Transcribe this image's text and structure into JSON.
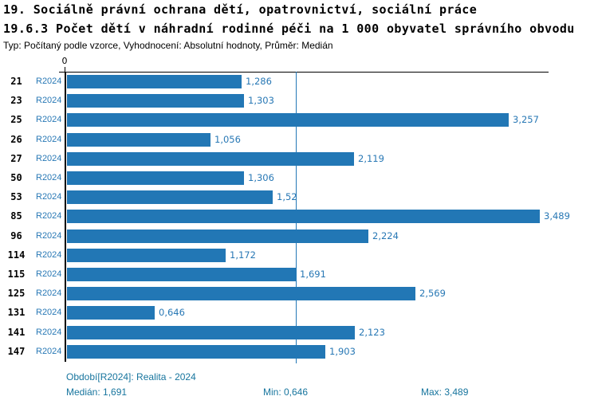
{
  "header": {
    "title_line1": "19. Sociálně právní ochrana dětí, opatrovnictví, sociální práce",
    "title_line2": "19.6.3 Počet dětí v náhradní rodinné péči na 1 000 obyvatel správního obvodu",
    "subtitle": "Typ: Počítaný podle vzorce, Vyhodnocení: Absolutní hodnoty, Průměr: Medián"
  },
  "chart": {
    "axis_zero_label": "0",
    "rows": [
      {
        "district": "21",
        "period": "R2024",
        "value": "1,286"
      },
      {
        "district": "23",
        "period": "R2024",
        "value": "1,303"
      },
      {
        "district": "25",
        "period": "R2024",
        "value": "3,257"
      },
      {
        "district": "26",
        "period": "R2024",
        "value": "1,056"
      },
      {
        "district": "27",
        "period": "R2024",
        "value": "2,119"
      },
      {
        "district": "50",
        "period": "R2024",
        "value": "1,306"
      },
      {
        "district": "53",
        "period": "R2024",
        "value": "1,52"
      },
      {
        "district": "85",
        "period": "R2024",
        "value": "3,489"
      },
      {
        "district": "96",
        "period": "R2024",
        "value": "2,224"
      },
      {
        "district": "114",
        "period": "R2024",
        "value": "1,172"
      },
      {
        "district": "115",
        "period": "R2024",
        "value": "1,691"
      },
      {
        "district": "125",
        "period": "R2024",
        "value": "2,569"
      },
      {
        "district": "131",
        "period": "R2024",
        "value": "0,646"
      },
      {
        "district": "141",
        "period": "R2024",
        "value": "2,123"
      },
      {
        "district": "147",
        "period": "R2024",
        "value": "1,903"
      }
    ],
    "colors": {
      "bar": "#2277b5",
      "value_text": "#2878b5",
      "period_text": "#2878b5",
      "median_line": "#2277b5",
      "axis": "#000000",
      "legend_text": "#17759e"
    }
  },
  "footer": {
    "period_line": "Období[R2024]: Realita - 2024",
    "median": "Medián: 1,691",
    "min": "Min: 0,646",
    "max": "Max: 3,489"
  },
  "chart_data": {
    "type": "bar",
    "orientation": "horizontal",
    "title": "19.6.3 Počet dětí v náhradní rodinné péči na 1 000 obyvatel správního obvodu",
    "xlabel": "",
    "ylabel": "",
    "categories": [
      "21",
      "23",
      "25",
      "26",
      "27",
      "50",
      "53",
      "85",
      "96",
      "114",
      "115",
      "125",
      "131",
      "141",
      "147"
    ],
    "series": [
      {
        "name": "R2024",
        "values": [
          1.286,
          1.303,
          3.257,
          1.056,
          2.119,
          1.306,
          1.52,
          3.489,
          2.224,
          1.172,
          1.691,
          2.569,
          0.646,
          2.123,
          1.903
        ]
      }
    ],
    "xlim": [
      0,
      3.6
    ],
    "grid": false,
    "legend_position": "none",
    "reference_line": {
      "type": "median",
      "value": 1.691
    },
    "stats": {
      "median": 1.691,
      "min": 0.646,
      "max": 3.489
    },
    "value_format": "decimal-comma"
  }
}
